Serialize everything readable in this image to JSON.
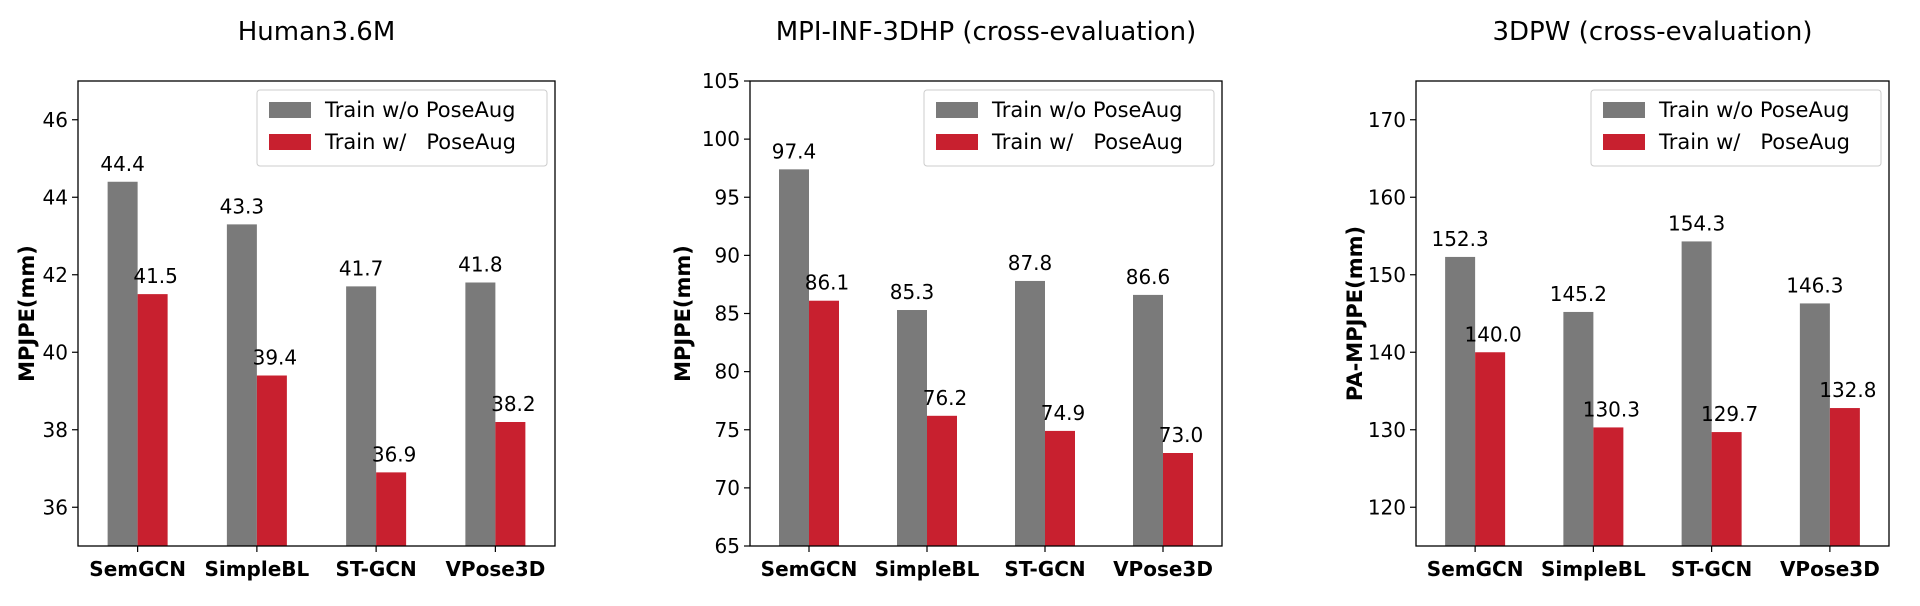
{
  "colors": {
    "without": "#7a7a7a",
    "with": "#c8202f",
    "axis": "#000000"
  },
  "chart_data": [
    {
      "type": "bar",
      "title": "Human3.6M",
      "ylabel": "MPJPE(mm)",
      "categories": [
        "SemGCN",
        "SimpleBL",
        "ST-GCN",
        "VPose3D"
      ],
      "ylim": [
        35,
        47
      ],
      "yticks": [
        36,
        38,
        40,
        42,
        44,
        46
      ],
      "legend_position": "top-right",
      "series": [
        {
          "name": "Train w/o PoseAug",
          "values": [
            44.4,
            43.3,
            41.7,
            41.8
          ],
          "labels": [
            "44.4",
            "43.3",
            "41.7",
            "41.8"
          ]
        },
        {
          "name": "Train w/   PoseAug",
          "values": [
            41.5,
            39.4,
            36.9,
            38.2
          ],
          "labels": [
            "41.5",
            "39.4",
            "36.9",
            "38.2"
          ]
        }
      ]
    },
    {
      "type": "bar",
      "title": "MPI-INF-3DHP (cross-evaluation)",
      "ylabel": "MPJPE(mm)",
      "categories": [
        "SemGCN",
        "SimpleBL",
        "ST-GCN",
        "VPose3D"
      ],
      "ylim": [
        65,
        105
      ],
      "yticks": [
        65,
        70,
        75,
        80,
        85,
        90,
        95,
        100,
        105
      ],
      "legend_position": "top-right",
      "series": [
        {
          "name": "Train w/o PoseAug",
          "values": [
            97.4,
            85.3,
            87.8,
            86.6
          ],
          "labels": [
            "97.4",
            "85.3",
            "87.8",
            "86.6"
          ]
        },
        {
          "name": "Train w/   PoseAug",
          "values": [
            86.1,
            76.2,
            74.9,
            73.0
          ],
          "labels": [
            "86.1",
            "76.2",
            "74.9",
            "73.0"
          ]
        }
      ]
    },
    {
      "type": "bar",
      "title": "3DPW (cross-evaluation)",
      "ylabel": "PA-MPJPE(mm)",
      "categories": [
        "SemGCN",
        "SimpleBL",
        "ST-GCN",
        "VPose3D"
      ],
      "ylim": [
        115,
        175
      ],
      "yticks": [
        120,
        130,
        140,
        150,
        160,
        170
      ],
      "legend_position": "top-right",
      "series": [
        {
          "name": "Train w/o PoseAug",
          "values": [
            152.3,
            145.2,
            154.3,
            146.3
          ],
          "labels": [
            "152.3",
            "145.2",
            "154.3",
            "146.3"
          ]
        },
        {
          "name": "Train w/   PoseAug",
          "values": [
            140.0,
            130.3,
            129.7,
            132.8
          ],
          "labels": [
            "140.0",
            "130.3",
            "129.7",
            "132.8"
          ]
        }
      ]
    }
  ]
}
